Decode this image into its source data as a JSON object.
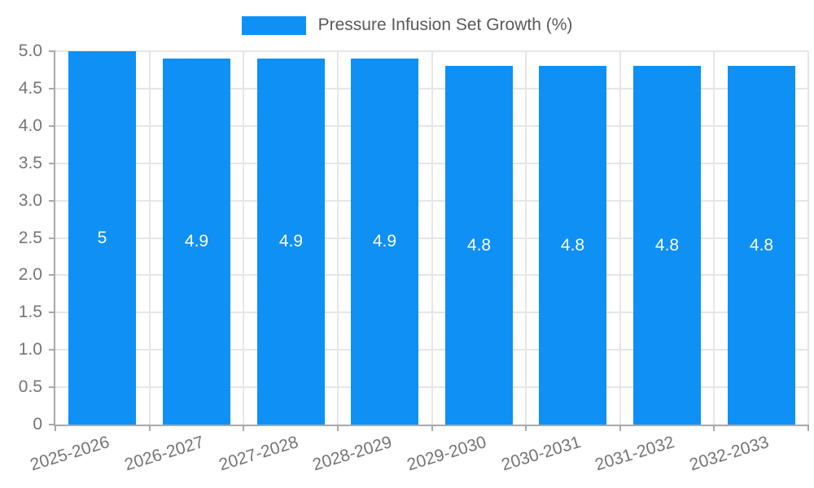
{
  "legend": {
    "label": "Pressure Infusion Set Growth (%)"
  },
  "chart_data": {
    "type": "bar",
    "title": "Pressure Infusion Set Growth (%)",
    "categories": [
      "2025-2026",
      "2026-2027",
      "2027-2028",
      "2028-2029",
      "2029-2030",
      "2030-2031",
      "2031-2032",
      "2032-2033"
    ],
    "values": [
      5,
      4.9,
      4.9,
      4.9,
      4.8,
      4.8,
      4.8,
      4.8
    ],
    "bar_labels": [
      "5",
      "4.9",
      "4.9",
      "4.9",
      "4.8",
      "4.8",
      "4.8",
      "4.8"
    ],
    "xlabel": "",
    "ylabel": "",
    "ylim": [
      0,
      5
    ],
    "yticks": [
      0,
      0.5,
      1,
      1.5,
      2,
      2.5,
      3,
      3.5,
      4,
      4.5,
      5
    ],
    "ytick_labels": [
      "0",
      "0.5",
      "1.0",
      "1.5",
      "2.0",
      "2.5",
      "3.0",
      "3.5",
      "4.0",
      "4.5",
      "5.0"
    ],
    "grid": true,
    "legend_position": "top",
    "colors": {
      "bar": "#0e90f5",
      "grid": "#e6e6e6",
      "axis": "#a8a8a8",
      "tick_text": "#757575",
      "legend_text": "#595959",
      "bar_label_text": "#ffffff",
      "background": "#ffffff"
    }
  }
}
